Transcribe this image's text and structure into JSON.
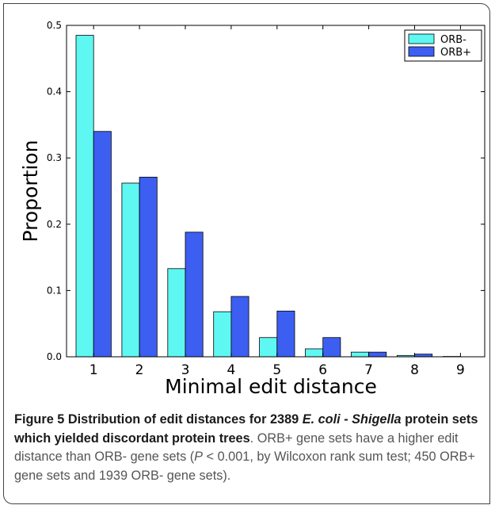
{
  "chart_data": {
    "type": "bar",
    "categories": [
      "1",
      "2",
      "3",
      "4",
      "5",
      "6",
      "7",
      "8",
      "9"
    ],
    "series": [
      {
        "name": "ORB-",
        "color": "#5ff7f2",
        "values": [
          0.485,
          0.262,
          0.133,
          0.068,
          0.029,
          0.012,
          0.007,
          0.002,
          0.0005
        ]
      },
      {
        "name": "ORB+",
        "color": "#3c5ff2",
        "values": [
          0.34,
          0.271,
          0.188,
          0.091,
          0.069,
          0.029,
          0.007,
          0.004,
          0.0
        ]
      }
    ],
    "xlabel": "Minimal edit distance",
    "ylabel": "Proportion",
    "ylim": [
      0,
      0.5
    ],
    "yticks": [
      "0.0",
      "0.1",
      "0.2",
      "0.3",
      "0.4",
      "0.5"
    ],
    "grid": false,
    "legend": "top-right"
  },
  "caption": {
    "figure_label": "Figure 5",
    "title_part1": "Distribution of edit distances for 2389",
    "title_species": "E. coli - Shigella",
    "title_part2": "protein sets which yielded discordant protein trees",
    "body_part1": ". ORB+ gene sets have a higher edit distance than ORB- gene sets (",
    "body_p": "P",
    "body_part2": " < 0.001, by Wilcoxon rank sum test; 450 ORB+ gene sets and 1939 ORB- gene sets)."
  }
}
